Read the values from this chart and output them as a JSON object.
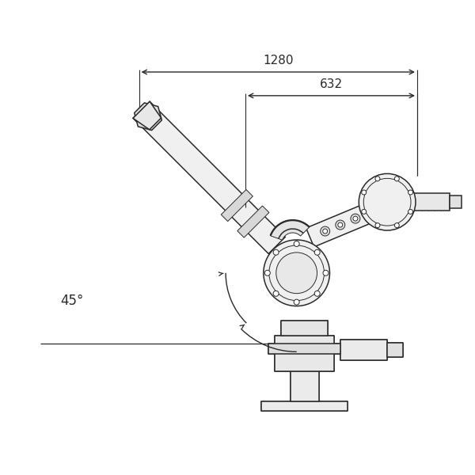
{
  "bg_color": "#ffffff",
  "line_color": "#2a2a2a",
  "dim_color": "#2a2a2a",
  "dim_1280": "1280",
  "dim_632": "632",
  "angle_label": "45°",
  "figsize": [
    6.0,
    6.0
  ],
  "dpi": 100
}
